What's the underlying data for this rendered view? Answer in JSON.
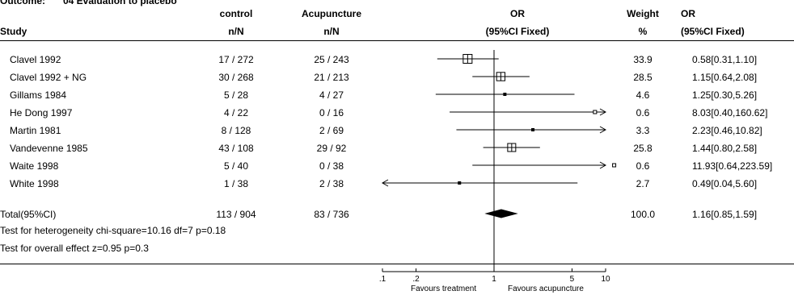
{
  "outcome_label": "Outcome:",
  "outcome_text": "04 Evaluation to placebo",
  "headers": {
    "study": "Study",
    "control_top": "control",
    "control_sub": "n/N",
    "treat_top": "Acupuncture",
    "treat_sub": "n/N",
    "or_top": "OR",
    "or_sub": "(95%CI Fixed)",
    "weight_top": "Weight",
    "weight_sub": "%",
    "orval_top": "OR",
    "orval_sub": "(95%CI Fixed)"
  },
  "rows": [
    {
      "study": "Clavel 1992",
      "control": "17 / 272",
      "treat": "25 / 243",
      "weight": "33.9",
      "or_text": "0.58[0.31,1.10]"
    },
    {
      "study": "Clavel 1992 + NG",
      "control": "30 / 268",
      "treat": "21 / 213",
      "weight": "28.5",
      "or_text": "1.15[0.64,2.08]"
    },
    {
      "study": "Gillams 1984",
      "control": "5 / 28",
      "treat": "4 / 27",
      "weight": "4.6",
      "or_text": "1.25[0.30,5.26]"
    },
    {
      "study": "He Dong 1997",
      "control": "4 / 22",
      "treat": "0 / 16",
      "weight": "0.6",
      "or_text": "8.03[0.40,160.62]"
    },
    {
      "study": "Martin 1981",
      "control": "8 / 128",
      "treat": "2 / 69",
      "weight": "3.3",
      "or_text": "2.23[0.46,10.82]"
    },
    {
      "study": "Vandevenne 1985",
      "control": "43 / 108",
      "treat": "29 / 92",
      "weight": "25.8",
      "or_text": "1.44[0.80,2.58]"
    },
    {
      "study": "Waite 1998",
      "control": "5 / 40",
      "treat": "0 / 38",
      "weight": "0.6",
      "or_text": "11.93[0.64,223.59]"
    },
    {
      "study": "White 1998",
      "control": "1 / 38",
      "treat": "2 / 38",
      "weight": "2.7",
      "or_text": "0.49[0.04,5.60]"
    }
  ],
  "total": {
    "study": "Total(95%CI)",
    "control": "113 / 904",
    "treat": "83 / 736",
    "weight": "100.0",
    "or_text": "1.16[0.85,1.59]"
  },
  "tests": {
    "heterogeneity": "Test for heterogeneity chi-square=10.16 df=7 p=0.18",
    "overall": "Test for overall effect z=0.95 p=0.3"
  },
  "axis_left_label": "Favours treatment",
  "axis_right_label": "Favours acupuncture",
  "chart_data": {
    "type": "forest",
    "scale": "log",
    "xlim": [
      0.1,
      10
    ],
    "reference_line": 1,
    "ticks": [
      0.1,
      0.2,
      1,
      5,
      10
    ],
    "tick_labels": [
      ".1",
      ".2",
      "1",
      "5",
      "10"
    ],
    "studies": [
      {
        "study": "Clavel 1992",
        "or": 0.58,
        "lower": 0.31,
        "upper": 1.1,
        "weight": 33.9
      },
      {
        "study": "Clavel 1992 + NG",
        "or": 1.15,
        "lower": 0.64,
        "upper": 2.08,
        "weight": 28.5
      },
      {
        "study": "Gillams 1984",
        "or": 1.25,
        "lower": 0.3,
        "upper": 5.26,
        "weight": 4.6
      },
      {
        "study": "He Dong 1997",
        "or": 8.03,
        "lower": 0.4,
        "upper": 160.62,
        "weight": 0.6
      },
      {
        "study": "Martin 1981",
        "or": 2.23,
        "lower": 0.46,
        "upper": 10.82,
        "weight": 3.3
      },
      {
        "study": "Vandevenne 1985",
        "or": 1.44,
        "lower": 0.8,
        "upper": 2.58,
        "weight": 25.8
      },
      {
        "study": "Waite 1998",
        "or": 11.93,
        "lower": 0.64,
        "upper": 223.59,
        "weight": 0.6
      },
      {
        "study": "White 1998",
        "or": 0.49,
        "lower": 0.04,
        "upper": 5.6,
        "weight": 2.7
      }
    ],
    "pooled": {
      "study": "Total(95%CI)",
      "or": 1.16,
      "lower": 0.85,
      "upper": 1.59
    }
  }
}
